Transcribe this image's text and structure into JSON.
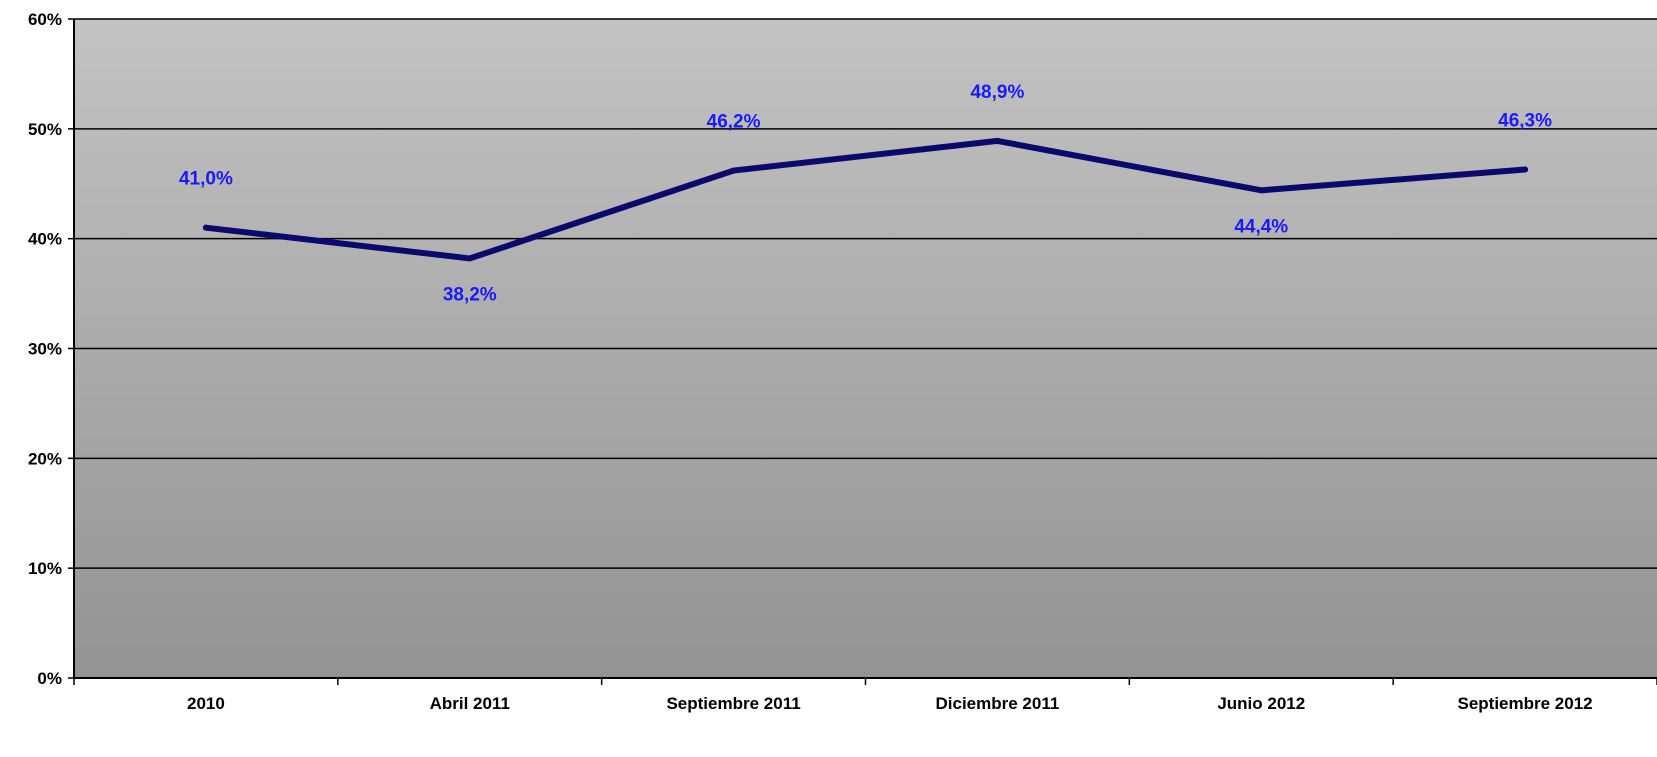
{
  "chart_data": {
    "type": "line",
    "title": "",
    "xlabel": "",
    "ylabel": "",
    "categories": [
      "2010",
      "Abril 2011",
      "Septiembre 2011",
      "Diciembre 2011",
      "Junio 2012",
      "Septiembre 2012"
    ],
    "series": [
      {
        "values": [
          41.0,
          38.2,
          46.2,
          48.9,
          44.4,
          46.3
        ],
        "labels": [
          "41,0%",
          "38,2%",
          "46,2%",
          "48,9%",
          "44,4%",
          "46,3%"
        ],
        "color": "#0a0a6e"
      }
    ],
    "ylim": [
      0,
      60
    ],
    "yticks": [
      0,
      10,
      20,
      30,
      40,
      50,
      60
    ],
    "ytick_labels": [
      "0%",
      "10%",
      "20%",
      "30%",
      "40%",
      "50%",
      "60%"
    ],
    "grid": true,
    "legend": "none",
    "colors": {
      "line": "#0a0a6e",
      "data_label": "#1a1aff",
      "plot_bg_top": "#c3c3c3",
      "plot_bg_bottom": "#939393",
      "grid": "#000000"
    }
  }
}
